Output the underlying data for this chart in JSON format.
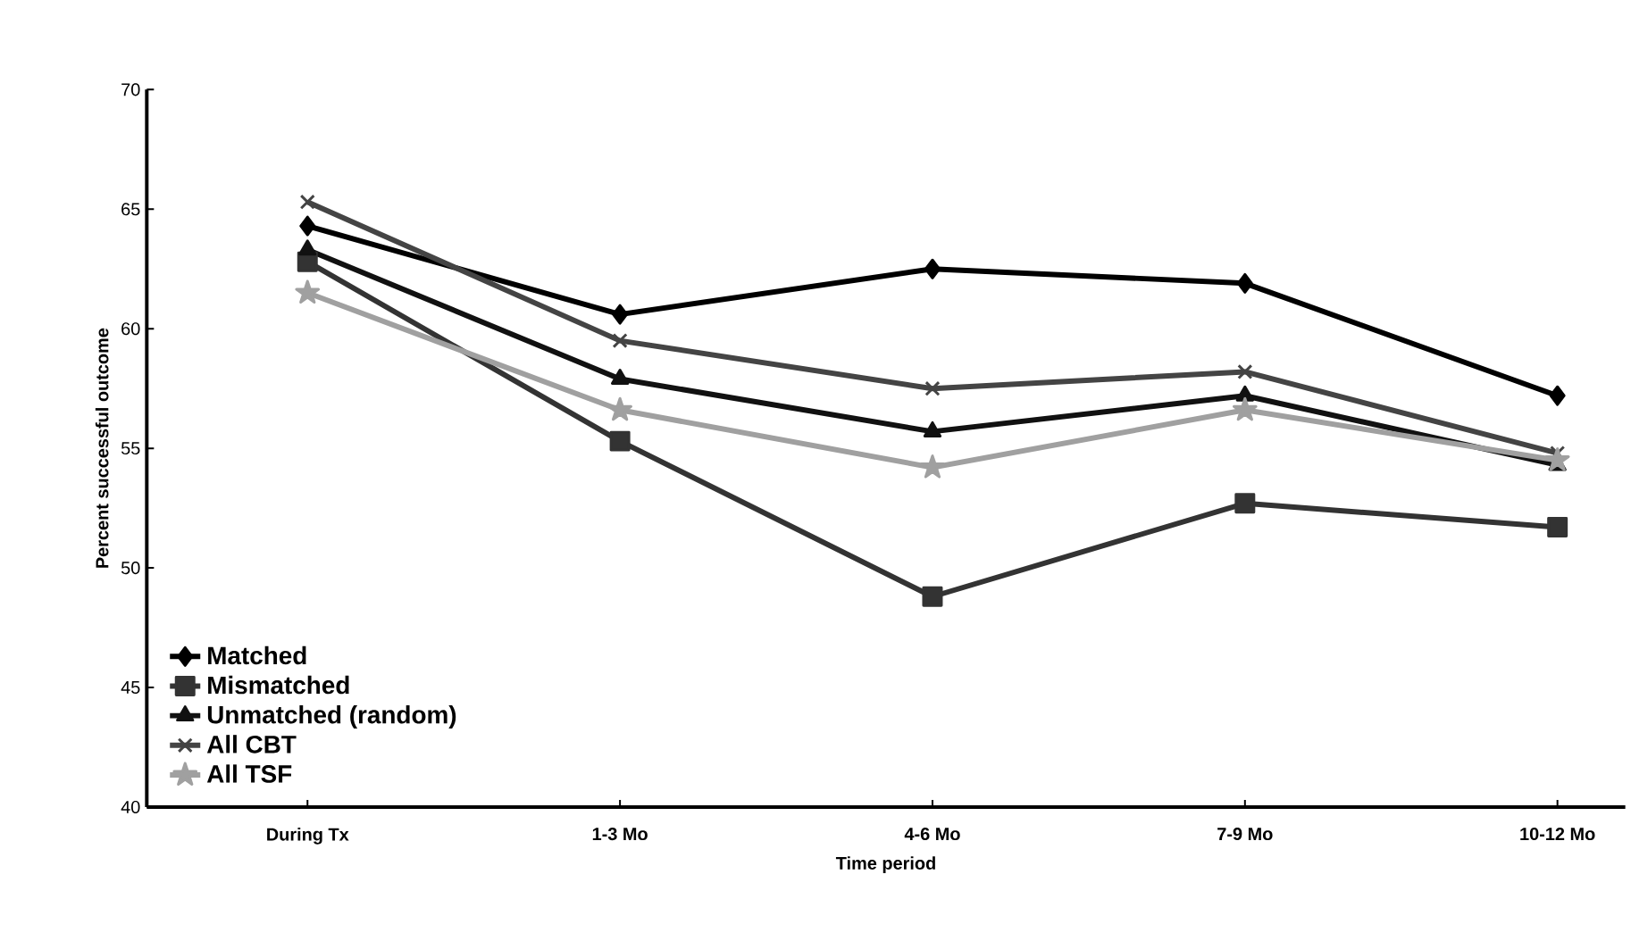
{
  "chart_data": {
    "type": "line",
    "xlabel": "Time period",
    "ylabel": "Percent successful outcome",
    "categories": [
      "During Tx",
      "1-3 Mo",
      "4-6 Mo",
      "7-9 Mo",
      "10-12 Mo"
    ],
    "series": [
      {
        "name": "Matched",
        "color": "#000000",
        "marker": "diamond",
        "values": [
          64.3,
          60.6,
          62.5,
          61.9,
          57.2
        ]
      },
      {
        "name": "Mismatched",
        "color": "#333333",
        "marker": "square",
        "values": [
          62.8,
          55.3,
          48.8,
          52.7,
          51.7
        ]
      },
      {
        "name": "Unmatched (random)",
        "color": "#111111",
        "marker": "triangle",
        "values": [
          63.3,
          57.9,
          55.7,
          57.2,
          54.3
        ]
      },
      {
        "name": "All CBT",
        "color": "#444444",
        "marker": "cross",
        "values": [
          65.3,
          59.5,
          57.5,
          58.2,
          54.8
        ]
      },
      {
        "name": "All TSF",
        "color": "#a0a0a0",
        "marker": "star",
        "values": [
          61.5,
          56.6,
          54.2,
          56.6,
          54.5
        ]
      }
    ],
    "ylim": [
      40,
      70
    ],
    "yticks": [
      40,
      45,
      50,
      55,
      60,
      65,
      70
    ],
    "grid": false,
    "legend": "bottom left",
    "line_style": "solid"
  }
}
